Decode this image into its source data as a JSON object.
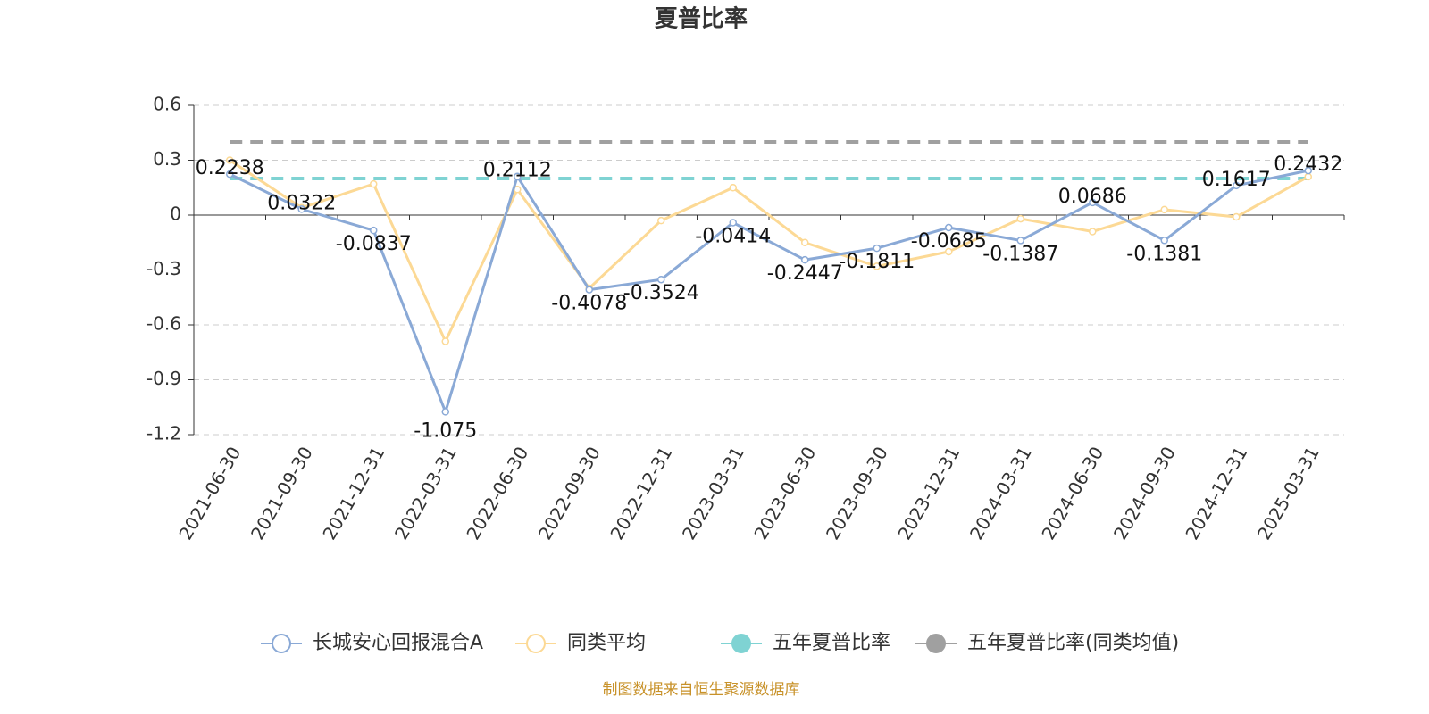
{
  "chart_data": {
    "type": "line",
    "title": "夏普比率",
    "categories": [
      "2021-06-30",
      "2021-09-30",
      "2021-12-31",
      "2022-03-31",
      "2022-06-30",
      "2022-09-30",
      "2022-12-31",
      "2023-03-31",
      "2023-06-30",
      "2023-09-30",
      "2023-12-31",
      "2024-03-31",
      "2024-06-30",
      "2024-09-30",
      "2024-12-31",
      "2025-03-31"
    ],
    "series": [
      {
        "name": "长城安心回报混合A",
        "color": "#8aa9d6",
        "values": [
          0.2238,
          0.0322,
          -0.0837,
          -1.075,
          0.2112,
          -0.4078,
          -0.3524,
          -0.0414,
          -0.2447,
          -0.1811,
          -0.0685,
          -0.1387,
          0.0686,
          -0.1381,
          0.1617,
          0.2432
        ],
        "labels": true
      },
      {
        "name": "同类平均",
        "color": "#fcd995",
        "values": [
          0.3,
          0.04,
          0.17,
          -0.69,
          0.14,
          -0.4,
          -0.03,
          0.15,
          -0.15,
          -0.28,
          -0.2,
          -0.02,
          -0.09,
          0.03,
          -0.01,
          0.21
        ]
      },
      {
        "name": "五年夏普比率",
        "color": "#7fd3d3",
        "dashed": true,
        "values": [
          0.2,
          0.2,
          0.2,
          0.2,
          0.2,
          0.2,
          0.2,
          0.2,
          0.2,
          0.2,
          0.2,
          0.2,
          0.2,
          0.2,
          0.2,
          0.2
        ]
      },
      {
        "name": "五年夏普比率(同类均值)",
        "color": "#a0a0a0",
        "dashed": true,
        "values": [
          0.4,
          0.4,
          0.4,
          0.4,
          0.4,
          0.4,
          0.4,
          0.4,
          0.4,
          0.4,
          0.4,
          0.4,
          0.4,
          0.4,
          0.4,
          0.4
        ]
      }
    ],
    "ylim": [
      -1.2,
      0.6
    ],
    "yticks": [
      0.6,
      0.3,
      0,
      -0.3,
      -0.6,
      -0.9,
      -1.2
    ],
    "grid": true,
    "source": "制图数据来自恒生聚源数据库"
  }
}
